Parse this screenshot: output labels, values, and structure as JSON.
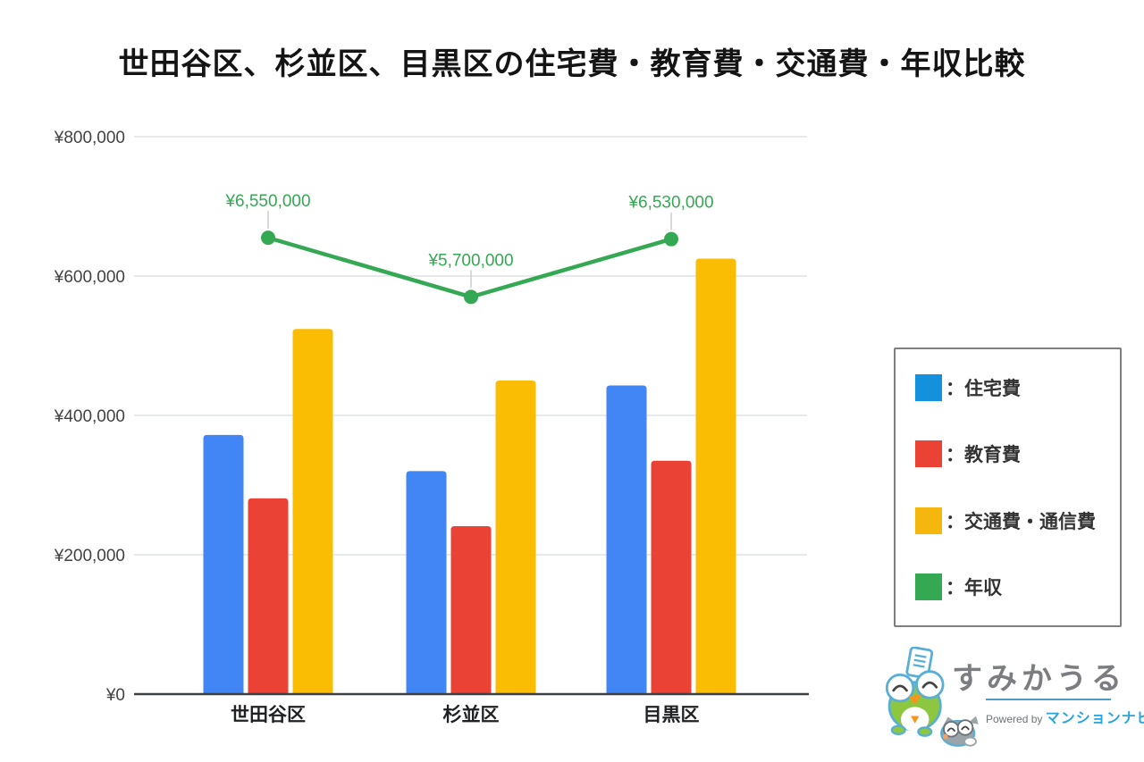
{
  "title": "世田谷区、杉並区、目黒区の住宅費・教育費・交通費・年収比較",
  "chart_data": {
    "type": "bar",
    "subtype": "grouped-bars-with-line-overlay",
    "categories": [
      "世田谷区",
      "杉並区",
      "目黒区"
    ],
    "category_keys": [
      "setagaya",
      "suginami",
      "meguro"
    ],
    "series": [
      {
        "name": "住宅費",
        "key": "housing-cost",
        "kind": "bar",
        "color": "#4285F4",
        "values": [
          372000,
          320000,
          443000
        ]
      },
      {
        "name": "教育費",
        "key": "education-cost",
        "kind": "bar",
        "color": "#EA4335",
        "values": [
          281000,
          241000,
          335000
        ]
      },
      {
        "name": "交通費・通信費",
        "key": "transport-communication-cost",
        "kind": "bar",
        "color": "#FBBC04",
        "values": [
          524000,
          450000,
          625000
        ]
      },
      {
        "name": "年収",
        "key": "annual-income",
        "kind": "line",
        "color": "#34A853",
        "values": [
          6550000,
          5700000,
          6530000
        ],
        "value_labels": [
          "¥6,550,000",
          "¥5,700,000",
          "¥6,530,000"
        ],
        "plotted_at_one_tenth_scale": 10
      }
    ],
    "ylim": [
      0,
      800000
    ],
    "y_ticks": [
      {
        "value": 0,
        "label": "¥0"
      },
      {
        "value": 200000,
        "label": "¥200,000"
      },
      {
        "value": 400000,
        "label": "¥400,000"
      },
      {
        "value": 600000,
        "label": "¥600,000"
      },
      {
        "value": 800000,
        "label": "¥800,000"
      }
    ],
    "grid": "horizontal-only",
    "legend_position": "right"
  },
  "legend": {
    "items": [
      {
        "label": "：住宅費",
        "key": "housing-cost",
        "color": "#1491DC"
      },
      {
        "label": "：教育費",
        "key": "education-cost",
        "color": "#EA4335"
      },
      {
        "label": "：交通費・通信費",
        "key": "transport-communication-cost",
        "color": "#F5B70D"
      },
      {
        "label": "：年収",
        "key": "annual-income",
        "color": "#34A853"
      }
    ]
  },
  "branding": {
    "logo_text": "すみかうる",
    "powered_by": "Powered by",
    "brand_name": "マンションナビ",
    "mascot": "frog-and-raccoon-mascots"
  }
}
